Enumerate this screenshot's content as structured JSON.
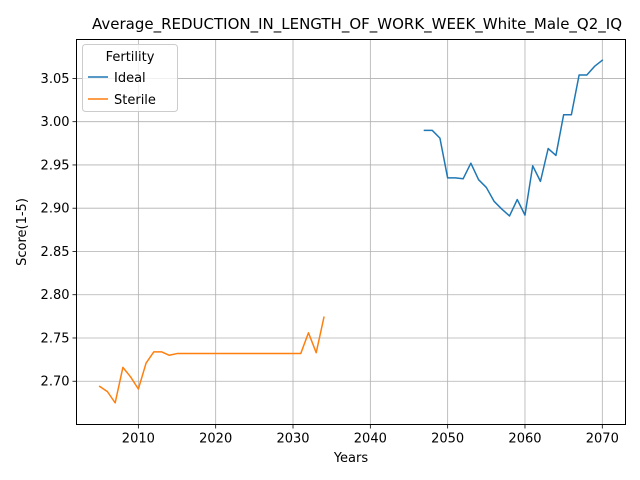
{
  "chart_data": {
    "type": "line",
    "title": "Average_REDUCTION_IN_LENGTH_OF_WORK_WEEK_White_Male_Q2_IQ",
    "xlabel": "Years",
    "ylabel": "Score(1-5)",
    "xlim": [
      2002,
      2073
    ],
    "ylim": [
      2.65,
      3.095
    ],
    "xticks": [
      2010,
      2020,
      2030,
      2040,
      2050,
      2060,
      2070
    ],
    "yticks": [
      2.7,
      2.75,
      2.8,
      2.85,
      2.9,
      2.95,
      3.0,
      3.05
    ],
    "xtick_labels": [
      "2010",
      "2020",
      "2030",
      "2040",
      "2050",
      "2060",
      "2070"
    ],
    "ytick_labels": [
      "2.70",
      "2.75",
      "2.80",
      "2.85",
      "2.90",
      "2.95",
      "3.00",
      "3.05"
    ],
    "grid": true,
    "legend": {
      "title": "Fertility",
      "placement": "top-left"
    },
    "series": [
      {
        "name": "Ideal",
        "color": "#1f77b4",
        "x": [
          2047,
          2048,
          2049,
          2050,
          2051,
          2052,
          2053,
          2054,
          2055,
          2056,
          2057,
          2058,
          2059,
          2060,
          2061,
          2062,
          2063,
          2064,
          2065,
          2066,
          2067,
          2068,
          2069,
          2070
        ],
        "y": [
          2.99,
          2.99,
          2.981,
          2.935,
          2.935,
          2.934,
          2.952,
          2.933,
          2.924,
          2.908,
          2.899,
          2.891,
          2.91,
          2.892,
          2.949,
          2.931,
          2.969,
          2.961,
          3.008,
          3.008,
          3.054,
          3.054,
          3.064,
          3.071
        ]
      },
      {
        "name": "Sterile",
        "color": "#ff7f0e",
        "x": [
          2005,
          2006,
          2007,
          2008,
          2009,
          2010,
          2011,
          2012,
          2013,
          2014,
          2015,
          2016,
          2017,
          2018,
          2019,
          2020,
          2021,
          2022,
          2023,
          2024,
          2025,
          2026,
          2027,
          2028,
          2029,
          2030,
          2031,
          2032,
          2033,
          2034
        ],
        "y": [
          2.694,
          2.688,
          2.675,
          2.716,
          2.705,
          2.691,
          2.721,
          2.734,
          2.734,
          2.73,
          2.732,
          2.732,
          2.732,
          2.732,
          2.732,
          2.732,
          2.732,
          2.732,
          2.732,
          2.732,
          2.732,
          2.732,
          2.732,
          2.732,
          2.732,
          2.732,
          2.732,
          2.756,
          2.733,
          2.774
        ]
      }
    ]
  }
}
